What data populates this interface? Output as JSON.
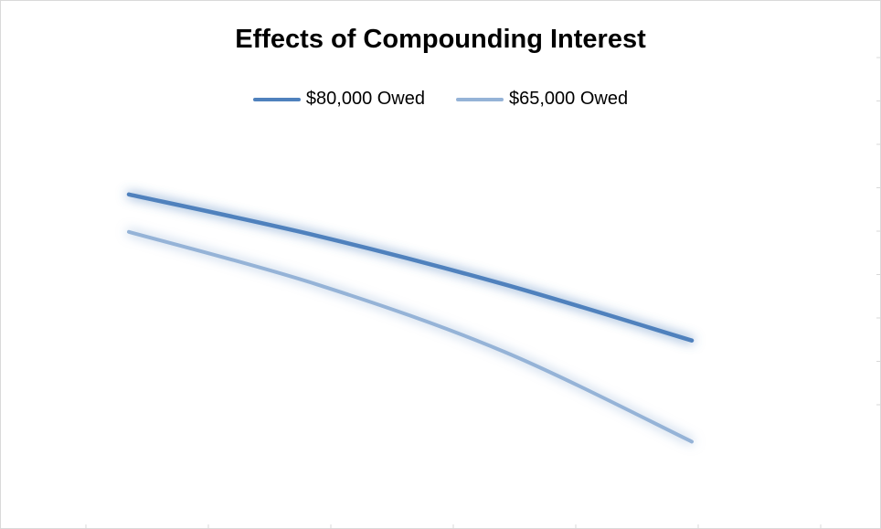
{
  "chart_data": {
    "type": "line",
    "title": "Effects of Compounding Interest",
    "xlabel": "",
    "ylabel": "",
    "x": [
      0,
      1,
      2,
      3
    ],
    "ylim": [
      0,
      100
    ],
    "grid": false,
    "legend_position": "top",
    "series": [
      {
        "name": "$80,000 Owed",
        "color": "#4f81bd",
        "values": [
          82,
          71,
          58,
          43
        ]
      },
      {
        "name": "$65,000 Owed",
        "color": "#95b3d7",
        "values": [
          72,
          58,
          40,
          16
        ]
      }
    ]
  }
}
